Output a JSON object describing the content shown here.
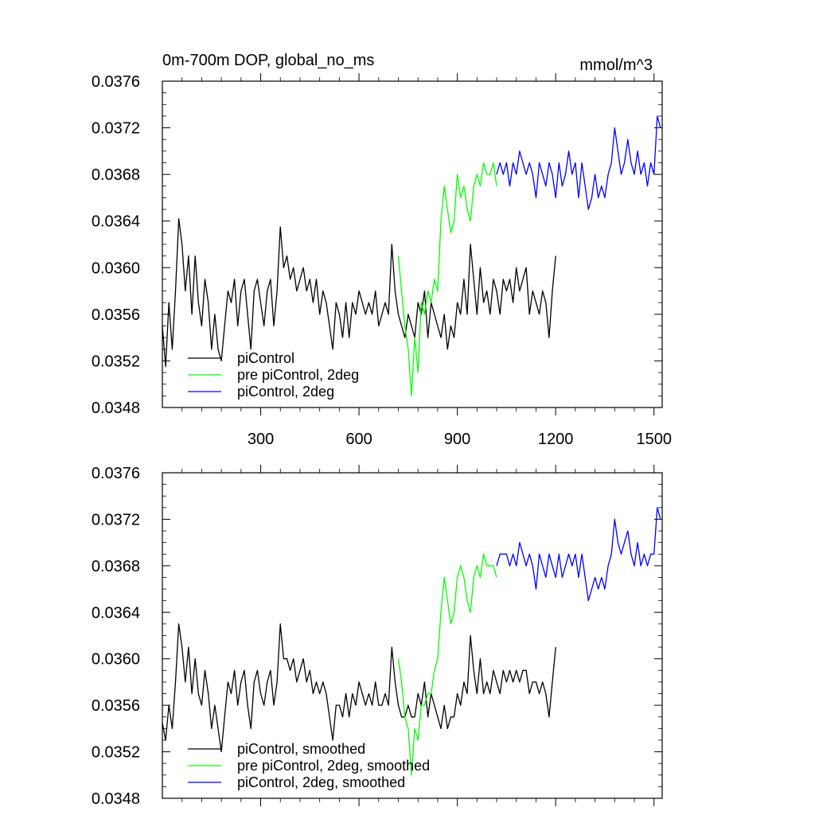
{
  "chart_data": [
    {
      "type": "line",
      "title": "0m-700m DOP, global_no_ms",
      "units": "mmol/m^3",
      "xlim": [
        0,
        1525
      ],
      "ylim": [
        0.0348,
        0.0376
      ],
      "xticks": [
        300,
        600,
        900,
        1200,
        1500
      ],
      "xtick_labels": [
        "300",
        "600",
        "900",
        "1200",
        "1500"
      ],
      "yticks": [
        0.0348,
        0.0352,
        0.0356,
        0.036,
        0.0364,
        0.0368,
        0.0372,
        0.0376
      ],
      "ytick_labels": [
        "0.0348",
        "0.0352",
        "0.0356",
        "0.0360",
        "0.0364",
        "0.0368",
        "0.0372",
        "0.0376"
      ],
      "grid": false,
      "legend_position": "bottom-left",
      "series": [
        {
          "name": "piControl",
          "color": "#000000",
          "x": [
            0,
            10,
            20,
            30,
            40,
            50,
            60,
            70,
            80,
            90,
            100,
            110,
            120,
            130,
            140,
            150,
            160,
            170,
            180,
            190,
            200,
            210,
            220,
            230,
            240,
            250,
            260,
            270,
            280,
            290,
            300,
            310,
            320,
            330,
            340,
            350,
            360,
            370,
            380,
            390,
            400,
            410,
            420,
            430,
            440,
            450,
            460,
            470,
            480,
            490,
            500,
            510,
            520,
            530,
            540,
            550,
            560,
            570,
            580,
            590,
            600,
            610,
            620,
            630,
            640,
            650,
            660,
            670,
            680,
            690,
            700,
            710,
            720,
            730,
            740,
            750,
            760,
            770,
            780,
            790,
            800,
            810,
            820,
            830,
            840,
            850,
            860,
            870,
            880,
            890,
            900,
            910,
            920,
            930,
            940,
            950,
            960,
            970,
            980,
            990,
            1000,
            1010,
            1020,
            1030,
            1040,
            1050,
            1060,
            1070,
            1080,
            1090,
            1100,
            1110,
            1120,
            1130,
            1140,
            1150,
            1160,
            1170,
            1180,
            1190,
            1200
          ],
          "y": [
            0.0355,
            0.03515,
            0.0357,
            0.0353,
            0.0358,
            0.03642,
            0.0362,
            0.0358,
            0.0361,
            0.0356,
            0.0361,
            0.0357,
            0.0355,
            0.0359,
            0.0357,
            0.0353,
            0.0356,
            0.0353,
            0.0352,
            0.0355,
            0.0358,
            0.0357,
            0.0359,
            0.0355,
            0.0358,
            0.0359,
            0.0356,
            0.0353,
            0.0358,
            0.0359,
            0.0357,
            0.0355,
            0.0358,
            0.0359,
            0.0355,
            0.0358,
            0.03635,
            0.036,
            0.0361,
            0.0359,
            0.036,
            0.0358,
            0.0359,
            0.036,
            0.0358,
            0.0359,
            0.0357,
            0.0359,
            0.0356,
            0.0358,
            0.0357,
            0.0355,
            0.0353,
            0.0357,
            0.0356,
            0.0354,
            0.0357,
            0.0354,
            0.0357,
            0.0356,
            0.0358,
            0.0357,
            0.0356,
            0.0357,
            0.0356,
            0.0358,
            0.0355,
            0.0356,
            0.0357,
            0.0356,
            0.0362,
            0.0358,
            0.0356,
            0.0355,
            0.0354,
            0.0356,
            0.0355,
            0.0354,
            0.0357,
            0.0356,
            0.0358,
            0.0354,
            0.0357,
            0.0356,
            0.0355,
            0.0354,
            0.0356,
            0.0353,
            0.0355,
            0.0354,
            0.0357,
            0.0356,
            0.0359,
            0.0356,
            0.0362,
            0.0359,
            0.0356,
            0.036,
            0.0357,
            0.0358,
            0.0356,
            0.0359,
            0.0358,
            0.0356,
            0.0359,
            0.0358,
            0.0359,
            0.0357,
            0.036,
            0.0358,
            0.0359,
            0.036,
            0.0356,
            0.0358,
            0.0357,
            0.0356,
            0.0358,
            0.0357,
            0.0354,
            0.0358,
            0.0361
          ]
        },
        {
          "name": "pre piControl, 2deg",
          "color": "#00ff00",
          "x": [
            720,
            730,
            740,
            750,
            760,
            770,
            780,
            790,
            800,
            810,
            820,
            830,
            840,
            850,
            860,
            870,
            880,
            890,
            900,
            910,
            920,
            930,
            940,
            950,
            960,
            970,
            980,
            990,
            1000,
            1010,
            1020
          ],
          "y": [
            0.0361,
            0.0358,
            0.0355,
            0.0353,
            0.0349,
            0.0354,
            0.0351,
            0.0357,
            0.0356,
            0.0358,
            0.0357,
            0.0359,
            0.0358,
            0.0364,
            0.0367,
            0.0365,
            0.0363,
            0.0364,
            0.0368,
            0.0366,
            0.0367,
            0.0365,
            0.0364,
            0.0367,
            0.0368,
            0.0367,
            0.0369,
            0.0368,
            0.0368,
            0.0369,
            0.0367
          ]
        },
        {
          "name": "piControl, 2deg",
          "color": "#0000ff",
          "x": [
            1020,
            1030,
            1040,
            1050,
            1060,
            1070,
            1080,
            1090,
            1100,
            1110,
            1120,
            1130,
            1140,
            1150,
            1160,
            1170,
            1180,
            1190,
            1200,
            1210,
            1220,
            1230,
            1240,
            1250,
            1260,
            1270,
            1280,
            1290,
            1300,
            1310,
            1320,
            1330,
            1340,
            1350,
            1360,
            1370,
            1380,
            1390,
            1400,
            1410,
            1420,
            1430,
            1440,
            1450,
            1460,
            1470,
            1480,
            1490,
            1500,
            1510,
            1520
          ],
          "y": [
            0.0368,
            0.0369,
            0.0368,
            0.0369,
            0.0367,
            0.0369,
            0.0368,
            0.037,
            0.0369,
            0.0368,
            0.0369,
            0.0368,
            0.0366,
            0.0369,
            0.0368,
            0.0367,
            0.0369,
            0.0368,
            0.0366,
            0.0369,
            0.0367,
            0.0368,
            0.037,
            0.0368,
            0.0369,
            0.0366,
            0.0369,
            0.0367,
            0.0365,
            0.0366,
            0.0368,
            0.0366,
            0.0367,
            0.0366,
            0.0368,
            0.0369,
            0.0372,
            0.037,
            0.0368,
            0.0369,
            0.0371,
            0.0369,
            0.0368,
            0.037,
            0.0368,
            0.0369,
            0.0367,
            0.0369,
            0.0368,
            0.0373,
            0.0372
          ]
        }
      ]
    },
    {
      "type": "line",
      "title": "",
      "units": "",
      "xlim": [
        0,
        1525
      ],
      "ylim": [
        0.0348,
        0.0376
      ],
      "xticks": [
        300,
        600,
        900,
        1200,
        1500
      ],
      "xtick_labels": [],
      "yticks": [
        0.0348,
        0.0352,
        0.0356,
        0.036,
        0.0364,
        0.0368,
        0.0372,
        0.0376
      ],
      "ytick_labels": [
        "0.0348",
        "0.0352",
        "0.0356",
        "0.0360",
        "0.0364",
        "0.0368",
        "0.0372",
        "0.0376"
      ],
      "grid": false,
      "legend_position": "bottom-left",
      "series": [
        {
          "name": "piControl, smoothed",
          "color": "#000000",
          "x": [
            0,
            10,
            20,
            30,
            40,
            50,
            60,
            70,
            80,
            90,
            100,
            110,
            120,
            130,
            140,
            150,
            160,
            170,
            180,
            190,
            200,
            210,
            220,
            230,
            240,
            250,
            260,
            270,
            280,
            290,
            300,
            310,
            320,
            330,
            340,
            350,
            360,
            370,
            380,
            390,
            400,
            410,
            420,
            430,
            440,
            450,
            460,
            470,
            480,
            490,
            500,
            510,
            520,
            530,
            540,
            550,
            560,
            570,
            580,
            590,
            600,
            610,
            620,
            630,
            640,
            650,
            660,
            670,
            680,
            690,
            700,
            710,
            720,
            730,
            740,
            750,
            760,
            770,
            780,
            790,
            800,
            810,
            820,
            830,
            840,
            850,
            860,
            870,
            880,
            890,
            900,
            910,
            920,
            930,
            940,
            950,
            960,
            970,
            980,
            990,
            1000,
            1010,
            1020,
            1030,
            1040,
            1050,
            1060,
            1070,
            1080,
            1090,
            1100,
            1110,
            1120,
            1130,
            1140,
            1150,
            1160,
            1170,
            1180,
            1190,
            1200
          ],
          "y": [
            0.03545,
            0.0353,
            0.0356,
            0.0354,
            0.0358,
            0.0363,
            0.0361,
            0.0358,
            0.0361,
            0.0357,
            0.036,
            0.0357,
            0.0356,
            0.0359,
            0.0357,
            0.0354,
            0.0356,
            0.0354,
            0.0352,
            0.0355,
            0.0358,
            0.0357,
            0.0359,
            0.0356,
            0.0358,
            0.0359,
            0.0356,
            0.0354,
            0.0358,
            0.0359,
            0.0357,
            0.0356,
            0.0358,
            0.0359,
            0.0356,
            0.0358,
            0.0363,
            0.036,
            0.036,
            0.0359,
            0.036,
            0.0358,
            0.0359,
            0.036,
            0.0358,
            0.0359,
            0.0357,
            0.0358,
            0.0357,
            0.0358,
            0.0357,
            0.0355,
            0.0353,
            0.0356,
            0.0356,
            0.0355,
            0.0357,
            0.0355,
            0.0357,
            0.0356,
            0.0358,
            0.0357,
            0.0356,
            0.0357,
            0.0356,
            0.0358,
            0.0356,
            0.0356,
            0.0357,
            0.0356,
            0.0361,
            0.0358,
            0.0356,
            0.0355,
            0.0355,
            0.0356,
            0.0355,
            0.0355,
            0.0357,
            0.0356,
            0.0358,
            0.0355,
            0.0357,
            0.0356,
            0.0355,
            0.0354,
            0.0356,
            0.0354,
            0.0355,
            0.0355,
            0.0357,
            0.0356,
            0.0358,
            0.0357,
            0.0362,
            0.0359,
            0.0357,
            0.036,
            0.0357,
            0.0358,
            0.0357,
            0.0359,
            0.0358,
            0.0357,
            0.0359,
            0.0358,
            0.0359,
            0.0358,
            0.0359,
            0.0358,
            0.0359,
            0.0359,
            0.0357,
            0.0358,
            0.0358,
            0.0357,
            0.0358,
            0.0357,
            0.0355,
            0.0358,
            0.0361
          ]
        },
        {
          "name": "pre piControl, 2deg, smoothed",
          "color": "#00ff00",
          "x": [
            720,
            730,
            740,
            750,
            760,
            770,
            780,
            790,
            800,
            810,
            820,
            830,
            840,
            850,
            860,
            870,
            880,
            890,
            900,
            910,
            920,
            930,
            940,
            950,
            960,
            970,
            980,
            990,
            1000,
            1010,
            1020
          ],
          "y": [
            0.036,
            0.0358,
            0.0355,
            0.0354,
            0.035,
            0.0354,
            0.0353,
            0.0356,
            0.0356,
            0.0357,
            0.0357,
            0.0359,
            0.036,
            0.0364,
            0.0367,
            0.0365,
            0.0363,
            0.0364,
            0.0367,
            0.0368,
            0.0367,
            0.0365,
            0.0364,
            0.0367,
            0.0368,
            0.0367,
            0.0369,
            0.0368,
            0.0368,
            0.0368,
            0.0367
          ]
        },
        {
          "name": "piControl, 2deg, smoothed",
          "color": "#0000ff",
          "x": [
            1020,
            1030,
            1040,
            1050,
            1060,
            1070,
            1080,
            1090,
            1100,
            1110,
            1120,
            1130,
            1140,
            1150,
            1160,
            1170,
            1180,
            1190,
            1200,
            1210,
            1220,
            1230,
            1240,
            1250,
            1260,
            1270,
            1280,
            1290,
            1300,
            1310,
            1320,
            1330,
            1340,
            1350,
            1360,
            1370,
            1380,
            1390,
            1400,
            1410,
            1420,
            1430,
            1440,
            1450,
            1460,
            1470,
            1480,
            1490,
            1500,
            1510,
            1520
          ],
          "y": [
            0.0368,
            0.0369,
            0.0369,
            0.0369,
            0.0368,
            0.0369,
            0.0368,
            0.037,
            0.0369,
            0.0368,
            0.0369,
            0.0368,
            0.0366,
            0.0369,
            0.0368,
            0.0367,
            0.0369,
            0.0368,
            0.0367,
            0.0369,
            0.0367,
            0.0368,
            0.0369,
            0.0368,
            0.0369,
            0.0367,
            0.0369,
            0.0367,
            0.0365,
            0.0366,
            0.0367,
            0.0366,
            0.0367,
            0.0366,
            0.0368,
            0.0369,
            0.0372,
            0.037,
            0.0369,
            0.037,
            0.0371,
            0.0369,
            0.0368,
            0.037,
            0.0368,
            0.0369,
            0.0368,
            0.0369,
            0.0369,
            0.0373,
            0.0372
          ]
        }
      ]
    }
  ]
}
